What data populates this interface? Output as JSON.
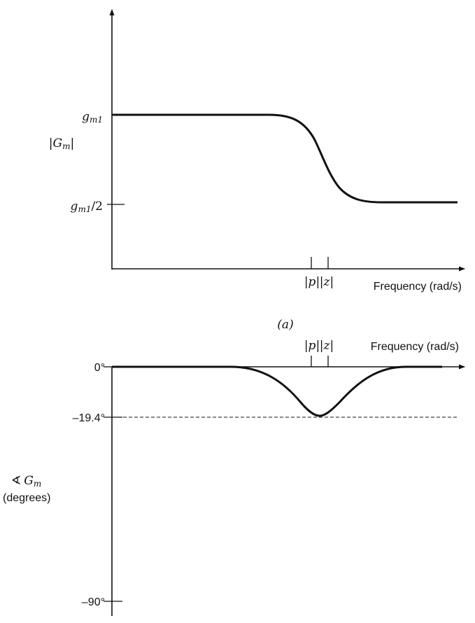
{
  "colors": {
    "ink": "#111111",
    "background": "#ffffff"
  },
  "magnitude_plot": {
    "y_axis_label": {
      "open": "|",
      "symbol": "G",
      "sub": "m",
      "close": "|"
    },
    "tick_high": {
      "symbol": "g",
      "sub": "m1",
      "suffix": ""
    },
    "tick_low": {
      "symbol": "g",
      "sub": "m1",
      "suffix": "/2"
    },
    "pole_label": "|p|",
    "zero_label": "|z|",
    "x_axis_label": "Frequency (rad/s)",
    "caption": "(a)"
  },
  "phase_plot": {
    "y_axis_label": {
      "angle_symbol": "∢",
      "symbol": "G",
      "sub": "m",
      "units": "(degrees)"
    },
    "tick_zero": "0°",
    "tick_min_phase": "–19.4°",
    "tick_bottom": "–90°",
    "pole_label": "|p|",
    "zero_label": "|z|",
    "x_axis_label": "Frequency (rad/s)"
  }
}
